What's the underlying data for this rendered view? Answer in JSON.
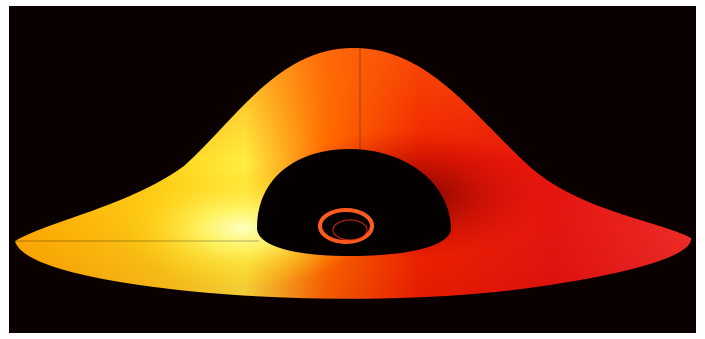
{
  "image": {
    "subject": "black-hole-accretion-disk",
    "colors": {
      "background": "#0a0000",
      "hot_side": "#fff86a",
      "mid": "#ff7a00",
      "cool_side": "#d80008",
      "shadow": "#050000",
      "photon_ring": "#ff5a20"
    }
  }
}
